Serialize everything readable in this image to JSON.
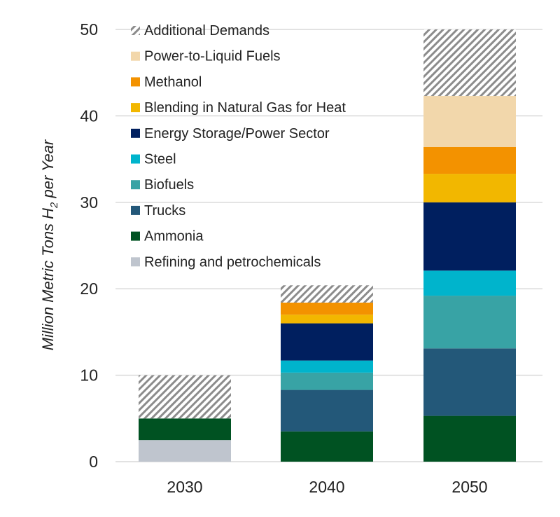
{
  "chart_data": {
    "type": "bar",
    "stacked": true,
    "title": "",
    "xlabel": "",
    "ylabel": "Million Metric Tons H",
    "ylabel_subscript": "2",
    "ylabel_suffix": " per Year",
    "ylim": [
      0,
      50
    ],
    "yticks": [
      "0",
      "10",
      "20",
      "30",
      "40",
      "50"
    ],
    "ytick_values": [
      0,
      10,
      20,
      30,
      40,
      50
    ],
    "grid": true,
    "legend_position": "top-left",
    "categories": [
      "2030",
      "2040",
      "2050"
    ],
    "series": [
      {
        "name": "Refining and petrochemicals",
        "color": "#BFC5CE",
        "values": [
          2.5,
          0,
          0
        ]
      },
      {
        "name": "Ammonia",
        "color": "#005222",
        "values": [
          2.5,
          3.5,
          5.3
        ]
      },
      {
        "name": "Trucks",
        "color": "#235879",
        "values": [
          0,
          4.8,
          7.8
        ]
      },
      {
        "name": "Biofuels",
        "color": "#38A3A5",
        "values": [
          0,
          2.0,
          6.1
        ]
      },
      {
        "name": "Steel",
        "color": "#00B4CC",
        "values": [
          0,
          1.4,
          2.9
        ]
      },
      {
        "name": "Energy Storage/Power Sector",
        "color": "#001F5F",
        "values": [
          0,
          4.3,
          7.9
        ]
      },
      {
        "name": "Blending in Natural Gas for Heat",
        "color": "#F2B700",
        "values": [
          0,
          1.0,
          3.3
        ]
      },
      {
        "name": "Methanol",
        "color": "#F39200",
        "values": [
          0,
          1.4,
          3.1
        ]
      },
      {
        "name": "Power-to-Liquid Fuels",
        "color": "#F2D7AB",
        "values": [
          0,
          0,
          5.9
        ]
      },
      {
        "name": "Additional Demands",
        "color": "#8C8C8C",
        "pattern": "hatched",
        "values": [
          5.0,
          2.0,
          7.7
        ]
      }
    ]
  }
}
